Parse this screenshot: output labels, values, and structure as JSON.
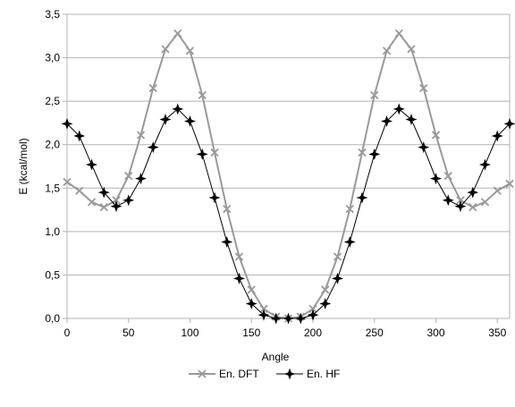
{
  "chart_data": {
    "type": "line",
    "xlabel": "Angle",
    "ylabel": "E (kcal/mol)",
    "xlim": [
      0,
      360
    ],
    "ylim": [
      0,
      3.5
    ],
    "x_ticks": [
      0,
      50,
      100,
      150,
      200,
      250,
      300,
      350
    ],
    "y_ticks": [
      0,
      0.5,
      1.0,
      1.5,
      2.0,
      2.5,
      3.0,
      3.5
    ],
    "y_tick_labels": [
      "0,0",
      "0,5",
      "1,0",
      "1,5",
      "2,0",
      "2,5",
      "3,0",
      "3,5"
    ],
    "x_tick_labels": [
      "0",
      "50",
      "100",
      "150",
      "200",
      "250",
      "300",
      "350"
    ],
    "grid": "horizontal",
    "legend_position": "bottom-center",
    "x": [
      0,
      10,
      20,
      30,
      40,
      50,
      60,
      70,
      80,
      90,
      100,
      110,
      120,
      130,
      140,
      150,
      160,
      170,
      180,
      190,
      200,
      210,
      220,
      230,
      240,
      250,
      260,
      270,
      280,
      290,
      300,
      310,
      320,
      330,
      340,
      350,
      360
    ],
    "series": [
      {
        "name": "En. DFT",
        "color": "#999999",
        "marker": "x",
        "values": [
          1.57,
          1.47,
          1.34,
          1.28,
          1.36,
          1.64,
          2.11,
          2.65,
          3.1,
          3.28,
          3.08,
          2.57,
          1.91,
          1.26,
          0.71,
          0.33,
          0.11,
          0.02,
          0.0,
          0.02,
          0.11,
          0.33,
          0.71,
          1.26,
          1.91,
          2.57,
          3.08,
          3.28,
          3.1,
          2.65,
          2.11,
          1.64,
          1.36,
          1.28,
          1.34,
          1.47,
          1.55
        ]
      },
      {
        "name": "En. HF",
        "color": "#000000",
        "marker": "+",
        "values": [
          2.24,
          2.1,
          1.77,
          1.45,
          1.29,
          1.36,
          1.61,
          1.97,
          2.29,
          2.41,
          2.27,
          1.89,
          1.39,
          0.88,
          0.46,
          0.17,
          0.04,
          0.0,
          0.0,
          0.0,
          0.04,
          0.17,
          0.46,
          0.88,
          1.39,
          1.89,
          2.27,
          2.41,
          2.29,
          1.97,
          1.61,
          1.36,
          1.29,
          1.45,
          1.77,
          2.1,
          2.24
        ]
      }
    ]
  }
}
